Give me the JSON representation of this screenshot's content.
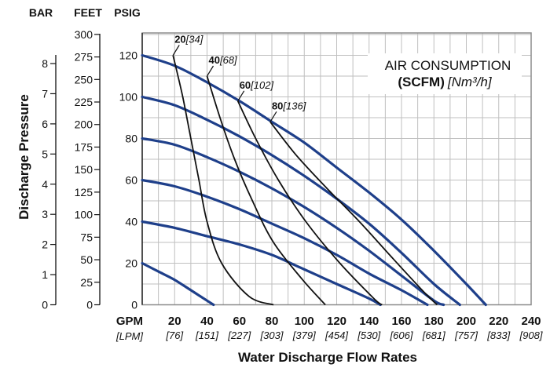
{
  "chart_data": {
    "type": "line",
    "title": "AIR CONSUMPTION",
    "subtitle_bold": "(SCFM)",
    "subtitle_italic": "[Nm³/h]",
    "xlabel": "Water Discharge Flow Rates",
    "ylabel": "Discharge Pressure",
    "xlim": [
      0,
      240
    ],
    "ylim": [
      0,
      130
    ],
    "grid": true,
    "x_primary_unit": "GPM",
    "x_secondary_unit": "[LPM]",
    "x_ticks": [
      {
        "gpm": "20",
        "lpm": "[76]"
      },
      {
        "gpm": "40",
        "lpm": "[151]"
      },
      {
        "gpm": "60",
        "lpm": "[227]"
      },
      {
        "gpm": "80",
        "lpm": "[303]"
      },
      {
        "gpm": "100",
        "lpm": "[379]"
      },
      {
        "gpm": "120",
        "lpm": "[454]"
      },
      {
        "gpm": "140",
        "lpm": "[530]"
      },
      {
        "gpm": "160",
        "lpm": "[606]"
      },
      {
        "gpm": "180",
        "lpm": "[681]"
      },
      {
        "gpm": "200",
        "lpm": "[757]"
      },
      {
        "gpm": "220",
        "lpm": "[833]"
      },
      {
        "gpm": "240",
        "lpm": "[908]"
      }
    ],
    "y_axes": [
      {
        "unit": "BAR",
        "ticks": [
          "0",
          "1",
          "2",
          "3",
          "4",
          "5",
          "6",
          "7",
          "8"
        ]
      },
      {
        "unit": "FEET",
        "ticks": [
          "0",
          "25",
          "50",
          "75",
          "100",
          "125",
          "150",
          "175",
          "200",
          "225",
          "250",
          "275",
          "300"
        ]
      },
      {
        "unit": "PSIG",
        "ticks": [
          "0",
          "20",
          "40",
          "60",
          "80",
          "100",
          "120"
        ]
      }
    ],
    "performance_curves": [
      {
        "psig": 120,
        "points": [
          [
            0,
            120
          ],
          [
            20,
            115
          ],
          [
            40,
            107
          ],
          [
            60,
            98
          ],
          [
            80,
            88
          ],
          [
            100,
            78
          ],
          [
            120,
            66
          ],
          [
            140,
            54
          ],
          [
            160,
            41
          ],
          [
            180,
            26
          ],
          [
            200,
            10
          ],
          [
            212,
            0
          ]
        ]
      },
      {
        "psig": 100,
        "points": [
          [
            0,
            100
          ],
          [
            20,
            96
          ],
          [
            40,
            89
          ],
          [
            60,
            81
          ],
          [
            80,
            72
          ],
          [
            100,
            62
          ],
          [
            120,
            51
          ],
          [
            140,
            39
          ],
          [
            160,
            25
          ],
          [
            180,
            10
          ],
          [
            196,
            0
          ]
        ]
      },
      {
        "psig": 80,
        "points": [
          [
            0,
            80
          ],
          [
            20,
            77
          ],
          [
            40,
            71
          ],
          [
            60,
            64
          ],
          [
            80,
            56
          ],
          [
            100,
            47
          ],
          [
            120,
            37
          ],
          [
            140,
            26
          ],
          [
            160,
            14
          ],
          [
            180,
            2
          ],
          [
            186,
            0
          ]
        ]
      },
      {
        "psig": 60,
        "points": [
          [
            0,
            60
          ],
          [
            20,
            57
          ],
          [
            40,
            52
          ],
          [
            60,
            46
          ],
          [
            80,
            39
          ],
          [
            100,
            32
          ],
          [
            120,
            24
          ],
          [
            140,
            15
          ],
          [
            160,
            7
          ],
          [
            176,
            0
          ]
        ]
      },
      {
        "psig": 40,
        "points": [
          [
            0,
            40
          ],
          [
            20,
            37
          ],
          [
            40,
            33
          ],
          [
            60,
            29
          ],
          [
            80,
            24
          ],
          [
            100,
            17
          ],
          [
            120,
            10
          ],
          [
            140,
            3
          ],
          [
            147,
            0
          ]
        ]
      },
      {
        "psig": 20,
        "points": [
          [
            0,
            20
          ],
          [
            10,
            16
          ],
          [
            20,
            12
          ],
          [
            30,
            7
          ],
          [
            40,
            2
          ],
          [
            44,
            0
          ]
        ]
      }
    ],
    "air_curves": [
      {
        "label_bold": "20",
        "label_italic": "[34]",
        "points": [
          [
            19,
            120
          ],
          [
            25,
            100
          ],
          [
            30,
            80
          ],
          [
            35,
            60
          ],
          [
            40,
            40
          ],
          [
            49,
            20
          ],
          [
            66,
            4
          ],
          [
            81,
            0
          ]
        ]
      },
      {
        "label_bold": "40",
        "label_italic": "[68]",
        "points": [
          [
            40,
            110
          ],
          [
            48,
            90
          ],
          [
            57,
            70
          ],
          [
            68,
            50
          ],
          [
            81,
            30
          ],
          [
            99,
            12
          ],
          [
            113,
            0
          ]
        ]
      },
      {
        "label_bold": "60",
        "label_italic": "[102]",
        "points": [
          [
            59,
            98
          ],
          [
            70,
            80
          ],
          [
            84,
            60
          ],
          [
            101,
            40
          ],
          [
            122,
            20
          ],
          [
            143,
            3
          ],
          [
            148,
            0
          ]
        ]
      },
      {
        "label_bold": "80",
        "label_italic": "[136]",
        "points": [
          [
            79,
            88
          ],
          [
            95,
            72
          ],
          [
            114,
            56
          ],
          [
            134,
            40
          ],
          [
            155,
            22
          ],
          [
            174,
            6
          ],
          [
            182,
            0
          ]
        ]
      }
    ],
    "colors": {
      "performance": "#1e3f8a",
      "air": "#111111",
      "grid": "#bfbfbf"
    }
  }
}
